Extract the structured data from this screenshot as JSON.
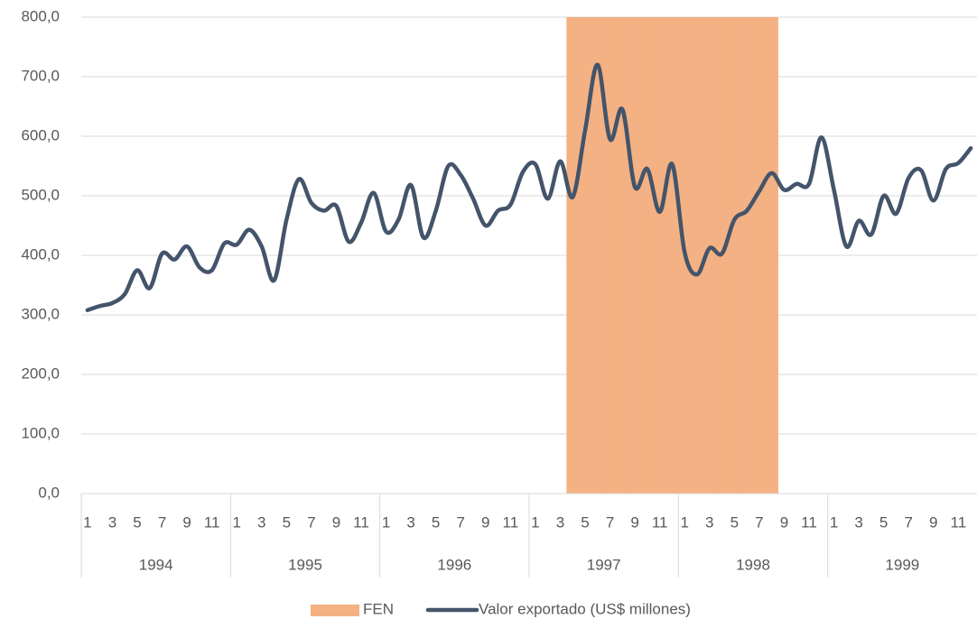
{
  "chart_data": {
    "type": "line",
    "categories": [
      "1",
      null,
      "3",
      null,
      "5",
      null,
      "7",
      null,
      "9",
      null,
      "11",
      null,
      "1",
      null,
      "3",
      null,
      "5",
      null,
      "7",
      null,
      "9",
      null,
      "11",
      null,
      "1",
      null,
      "3",
      null,
      "5",
      null,
      "7",
      null,
      "9",
      null,
      "11",
      null,
      "1",
      null,
      "3",
      null,
      "5",
      null,
      "7",
      null,
      "9",
      null,
      "11",
      null,
      "1",
      null,
      "3",
      null,
      "5",
      null,
      "7",
      null,
      "9",
      null,
      "11",
      null,
      "1",
      null,
      "3",
      null,
      "5",
      null,
      "7",
      null,
      "9",
      null,
      "11",
      null
    ],
    "category_groups": [
      "1994",
      "1995",
      "1996",
      "1997",
      "1998",
      "1999"
    ],
    "series": [
      {
        "name": "FEN",
        "type": "bar",
        "color": "#f4b183",
        "values": [
          null,
          null,
          null,
          null,
          null,
          null,
          null,
          null,
          null,
          null,
          null,
          null,
          null,
          null,
          null,
          null,
          null,
          null,
          null,
          null,
          null,
          null,
          null,
          null,
          null,
          null,
          null,
          null,
          null,
          null,
          null,
          null,
          null,
          null,
          null,
          null,
          null,
          null,
          null,
          800,
          800,
          800,
          800,
          800,
          800,
          800,
          800,
          800,
          800,
          800,
          800,
          800,
          800,
          800,
          800,
          800,
          null,
          null,
          null,
          null,
          null,
          null,
          null,
          null,
          null,
          null,
          null,
          null,
          null,
          null,
          null,
          null
        ]
      },
      {
        "name": "Valor exportado (US$ millones)",
        "type": "line",
        "color": "#44546a",
        "values": [
          308,
          315,
          320,
          335,
          375,
          345,
          403,
          393,
          415,
          380,
          375,
          420,
          418,
          443,
          415,
          358,
          460,
          528,
          488,
          475,
          483,
          423,
          455,
          505,
          440,
          460,
          518,
          430,
          475,
          550,
          535,
          495,
          450,
          475,
          485,
          540,
          553,
          495,
          558,
          498,
          610,
          720,
          595,
          645,
          515,
          545,
          473,
          553,
          405,
          368,
          412,
          403,
          460,
          475,
          508,
          538,
          510,
          520,
          520,
          598,
          510,
          415,
          458,
          435,
          500,
          470,
          530,
          543,
          492,
          545,
          555,
          580
        ]
      }
    ],
    "ylim": [
      0,
      800
    ],
    "yticks": [
      {
        "value": 0,
        "label": "0,0"
      },
      {
        "value": 100,
        "label": "100,0"
      },
      {
        "value": 200,
        "label": "200,0"
      },
      {
        "value": 300,
        "label": "300,0"
      },
      {
        "value": 400,
        "label": "400,0"
      },
      {
        "value": 500,
        "label": "500,0"
      },
      {
        "value": 600,
        "label": "600,0"
      },
      {
        "value": 700,
        "label": "700,0"
      },
      {
        "value": 800,
        "label": "800,0"
      }
    ],
    "grid": true,
    "legend": "bottom"
  }
}
